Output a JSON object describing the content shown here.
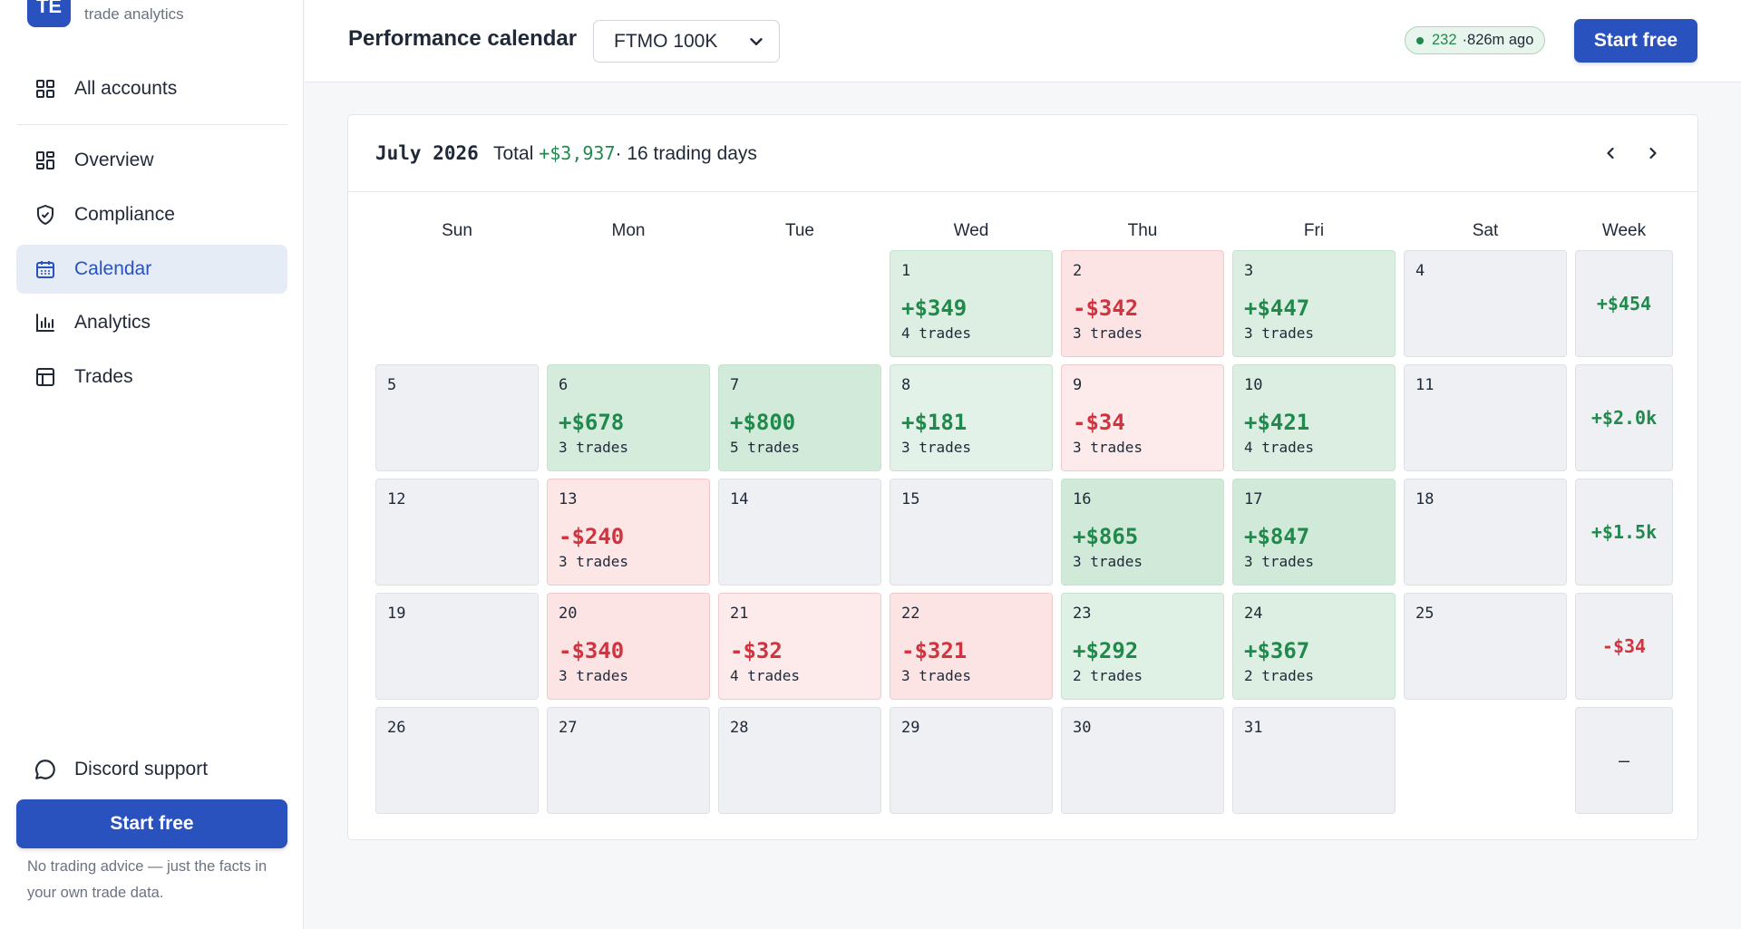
{
  "sidebar": {
    "brand_logo": "TE",
    "brand_sub": "trade analytics",
    "all_accounts": "All accounts",
    "items": [
      {
        "label": "Overview",
        "icon": "grid-icon"
      },
      {
        "label": "Compliance",
        "icon": "shield-check-icon"
      },
      {
        "label": "Calendar",
        "icon": "calendar-icon",
        "active": true
      },
      {
        "label": "Analytics",
        "icon": "bar-chart-icon"
      },
      {
        "label": "Trades",
        "icon": "table-icon"
      }
    ],
    "discord": "Discord support",
    "cta": "Start free",
    "note": "No trading advice — just the facts in your own trade data."
  },
  "header": {
    "title": "Performance calendar",
    "account": "FTMO 100K",
    "status_count": "232",
    "status_time": "·826m ago",
    "cta": "Start free"
  },
  "calendar": {
    "month": "July 2026",
    "total_label": "Total",
    "total_amount": "+$3,937",
    "total_suffix": "· 16 trading days",
    "weekdays": [
      "Sun",
      "Mon",
      "Tue",
      "Wed",
      "Thu",
      "Fri",
      "Sat",
      "Week"
    ],
    "weeks": [
      {
        "days": [
          null,
          null,
          null,
          {
            "day": "1",
            "pnl": "+$349",
            "trades": "4 trades",
            "sign": "pos",
            "intensity": 0.4
          },
          {
            "day": "2",
            "pnl": "-$342",
            "trades": "3 trades",
            "sign": "neg",
            "intensity": 0.5
          },
          {
            "day": "3",
            "pnl": "+$447",
            "trades": "3 trades",
            "sign": "pos",
            "intensity": 0.5
          },
          {
            "day": "4"
          }
        ],
        "total": "+$454",
        "total_sign": "pos"
      },
      {
        "days": [
          {
            "day": "5"
          },
          {
            "day": "6",
            "pnl": "+$678",
            "trades": "3 trades",
            "sign": "pos",
            "intensity": 0.7
          },
          {
            "day": "7",
            "pnl": "+$800",
            "trades": "5 trades",
            "sign": "pos",
            "intensity": 0.8
          },
          {
            "day": "8",
            "pnl": "+$181",
            "trades": "3 trades",
            "sign": "pos",
            "intensity": 0.2
          },
          {
            "day": "9",
            "pnl": "-$34",
            "trades": "3 trades",
            "sign": "neg",
            "intensity": 0.1
          },
          {
            "day": "10",
            "pnl": "+$421",
            "trades": "4 trades",
            "sign": "pos",
            "intensity": 0.5
          },
          {
            "day": "11"
          }
        ],
        "total": "+$2.0k",
        "total_sign": "pos"
      },
      {
        "days": [
          {
            "day": "12"
          },
          {
            "day": "13",
            "pnl": "-$240",
            "trades": "3 trades",
            "sign": "neg",
            "intensity": 0.4
          },
          {
            "day": "14"
          },
          {
            "day": "15"
          },
          {
            "day": "16",
            "pnl": "+$865",
            "trades": "3 trades",
            "sign": "pos",
            "intensity": 0.9
          },
          {
            "day": "17",
            "pnl": "+$847",
            "trades": "3 trades",
            "sign": "pos",
            "intensity": 0.9
          },
          {
            "day": "18"
          }
        ],
        "total": "+$1.5k",
        "total_sign": "pos"
      },
      {
        "days": [
          {
            "day": "19"
          },
          {
            "day": "20",
            "pnl": "-$340",
            "trades": "3 trades",
            "sign": "neg",
            "intensity": 0.5
          },
          {
            "day": "21",
            "pnl": "-$32",
            "trades": "4 trades",
            "sign": "neg",
            "intensity": 0.1
          },
          {
            "day": "22",
            "pnl": "-$321",
            "trades": "3 trades",
            "sign": "neg",
            "intensity": 0.5
          },
          {
            "day": "23",
            "pnl": "+$292",
            "trades": "2 trades",
            "sign": "pos",
            "intensity": 0.35
          },
          {
            "day": "24",
            "pnl": "+$367",
            "trades": "2 trades",
            "sign": "pos",
            "intensity": 0.45
          },
          {
            "day": "25"
          }
        ],
        "total": "-$34",
        "total_sign": "neg"
      },
      {
        "days": [
          {
            "day": "26"
          },
          {
            "day": "27"
          },
          {
            "day": "28"
          },
          {
            "day": "29"
          },
          {
            "day": "30"
          },
          {
            "day": "31"
          },
          null
        ],
        "total": "—",
        "total_sign": "none"
      }
    ]
  },
  "colors": {
    "brand": "#2a52be",
    "positive": "#1f8a4c",
    "negative": "#d1343f",
    "empty_cell": "#eef0f4"
  }
}
